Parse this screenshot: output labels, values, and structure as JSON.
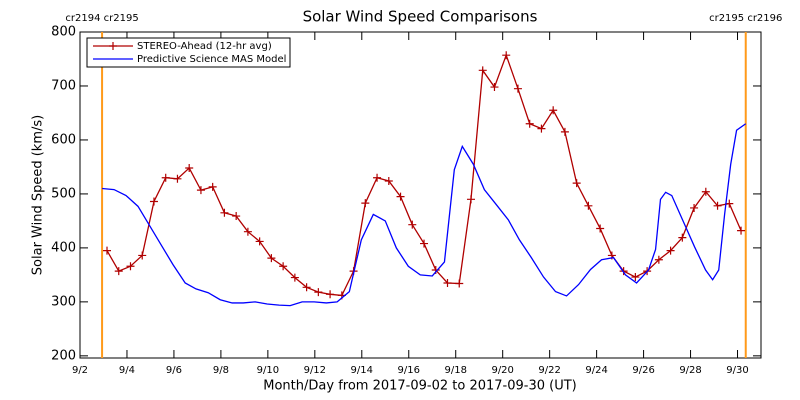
{
  "chart_data": {
    "type": "line",
    "title": "Solar Wind Speed Comparisons",
    "x_label": "Month/Day from 2017-09-02 to 2017-09-30 (UT)",
    "y_label": "Solar Wind Speed (km/s)",
    "xlim": [
      0,
      29
    ],
    "ylim": [
      196,
      800
    ],
    "xticks": [
      {
        "value": 0,
        "label": "9/2"
      },
      {
        "value": 2,
        "label": "9/4"
      },
      {
        "value": 4,
        "label": "9/6"
      },
      {
        "value": 6,
        "label": "9/8"
      },
      {
        "value": 8,
        "label": "9/10"
      },
      {
        "value": 10,
        "label": "9/12"
      },
      {
        "value": 12,
        "label": "9/14"
      },
      {
        "value": 14,
        "label": "9/16"
      },
      {
        "value": 16,
        "label": "9/18"
      },
      {
        "value": 18,
        "label": "9/20"
      },
      {
        "value": 20,
        "label": "9/22"
      },
      {
        "value": 22,
        "label": "9/24"
      },
      {
        "value": 24,
        "label": "9/26"
      },
      {
        "value": 26,
        "label": "9/28"
      },
      {
        "value": 28,
        "label": "9/30"
      }
    ],
    "yticks": [
      200,
      300,
      400,
      500,
      600,
      700,
      800
    ],
    "legend": "upper left",
    "markers": [
      {
        "x": 0.94,
        "label": "cr2194 cr2195",
        "color": "#ff9a1a"
      },
      {
        "x": 28.35,
        "label": "cr2195 cr2196",
        "color": "#ff9a1a"
      }
    ],
    "series": [
      {
        "name": "STEREO-Ahead (12-hr avg)",
        "color": "#b00000",
        "marker": "+",
        "x": [
          1.15,
          1.65,
          2.15,
          2.65,
          3.15,
          3.65,
          4.15,
          4.65,
          5.15,
          5.65,
          6.15,
          6.65,
          7.15,
          7.65,
          8.15,
          8.65,
          9.15,
          9.65,
          10.15,
          10.65,
          11.15,
          11.65,
          12.15,
          12.65,
          13.15,
          13.65,
          14.15,
          14.65,
          15.15,
          15.65,
          16.15,
          16.65,
          17.15,
          17.65,
          18.15,
          18.65,
          19.15,
          19.65,
          20.15,
          20.65,
          21.15,
          21.65,
          22.15,
          22.65,
          23.15,
          23.65,
          24.15,
          24.65,
          25.15,
          25.65,
          26.15,
          26.65,
          27.15,
          27.65,
          28.15
        ],
        "values": [
          395,
          357,
          366,
          386,
          486,
          530,
          528,
          548,
          507,
          513,
          465,
          459,
          430,
          412,
          381,
          366,
          345,
          327,
          318,
          314,
          312,
          357,
          483,
          530,
          524,
          495,
          443,
          408,
          359,
          335,
          334,
          490,
          729,
          698,
          757,
          695,
          630,
          621,
          655,
          615,
          520,
          478,
          436,
          386,
          357,
          346,
          357,
          378,
          395,
          419,
          474,
          504,
          478,
          482,
          432
        ]
      },
      {
        "name": "Predictive Science MAS Model",
        "color": "#0000ff",
        "x": [
          0.94,
          1.45,
          1.96,
          2.47,
          2.94,
          3.45,
          3.96,
          4.48,
          4.94,
          5.46,
          5.97,
          6.48,
          6.95,
          7.46,
          7.97,
          8.48,
          8.95,
          9.46,
          9.97,
          10.49,
          10.95,
          11.47,
          11.98,
          12.49,
          13.0,
          13.47,
          13.98,
          14.49,
          15.0,
          15.52,
          15.94,
          16.28,
          16.75,
          17.22,
          17.73,
          18.24,
          18.71,
          19.22,
          19.74,
          20.25,
          20.72,
          21.23,
          21.74,
          22.21,
          22.72,
          23.23,
          23.7,
          24.21,
          24.51,
          24.72,
          24.94,
          25.2,
          25.66,
          26.17,
          26.64,
          26.94,
          27.2,
          27.45,
          27.71,
          27.96,
          28.35
        ],
        "values": [
          510,
          508,
          497,
          477,
          443,
          406,
          369,
          335,
          324,
          317,
          304,
          298,
          298,
          300,
          296,
          294,
          293,
          300,
          300,
          298,
          300,
          319,
          415,
          462,
          450,
          400,
          366,
          350,
          348,
          374,
          545,
          588,
          555,
          508,
          480,
          452,
          415,
          382,
          346,
          319,
          311,
          332,
          360,
          378,
          382,
          350,
          335,
          359,
          397,
          490,
          503,
          497,
          452,
          402,
          359,
          341,
          359,
          462,
          555,
          618,
          630
        ]
      }
    ]
  }
}
